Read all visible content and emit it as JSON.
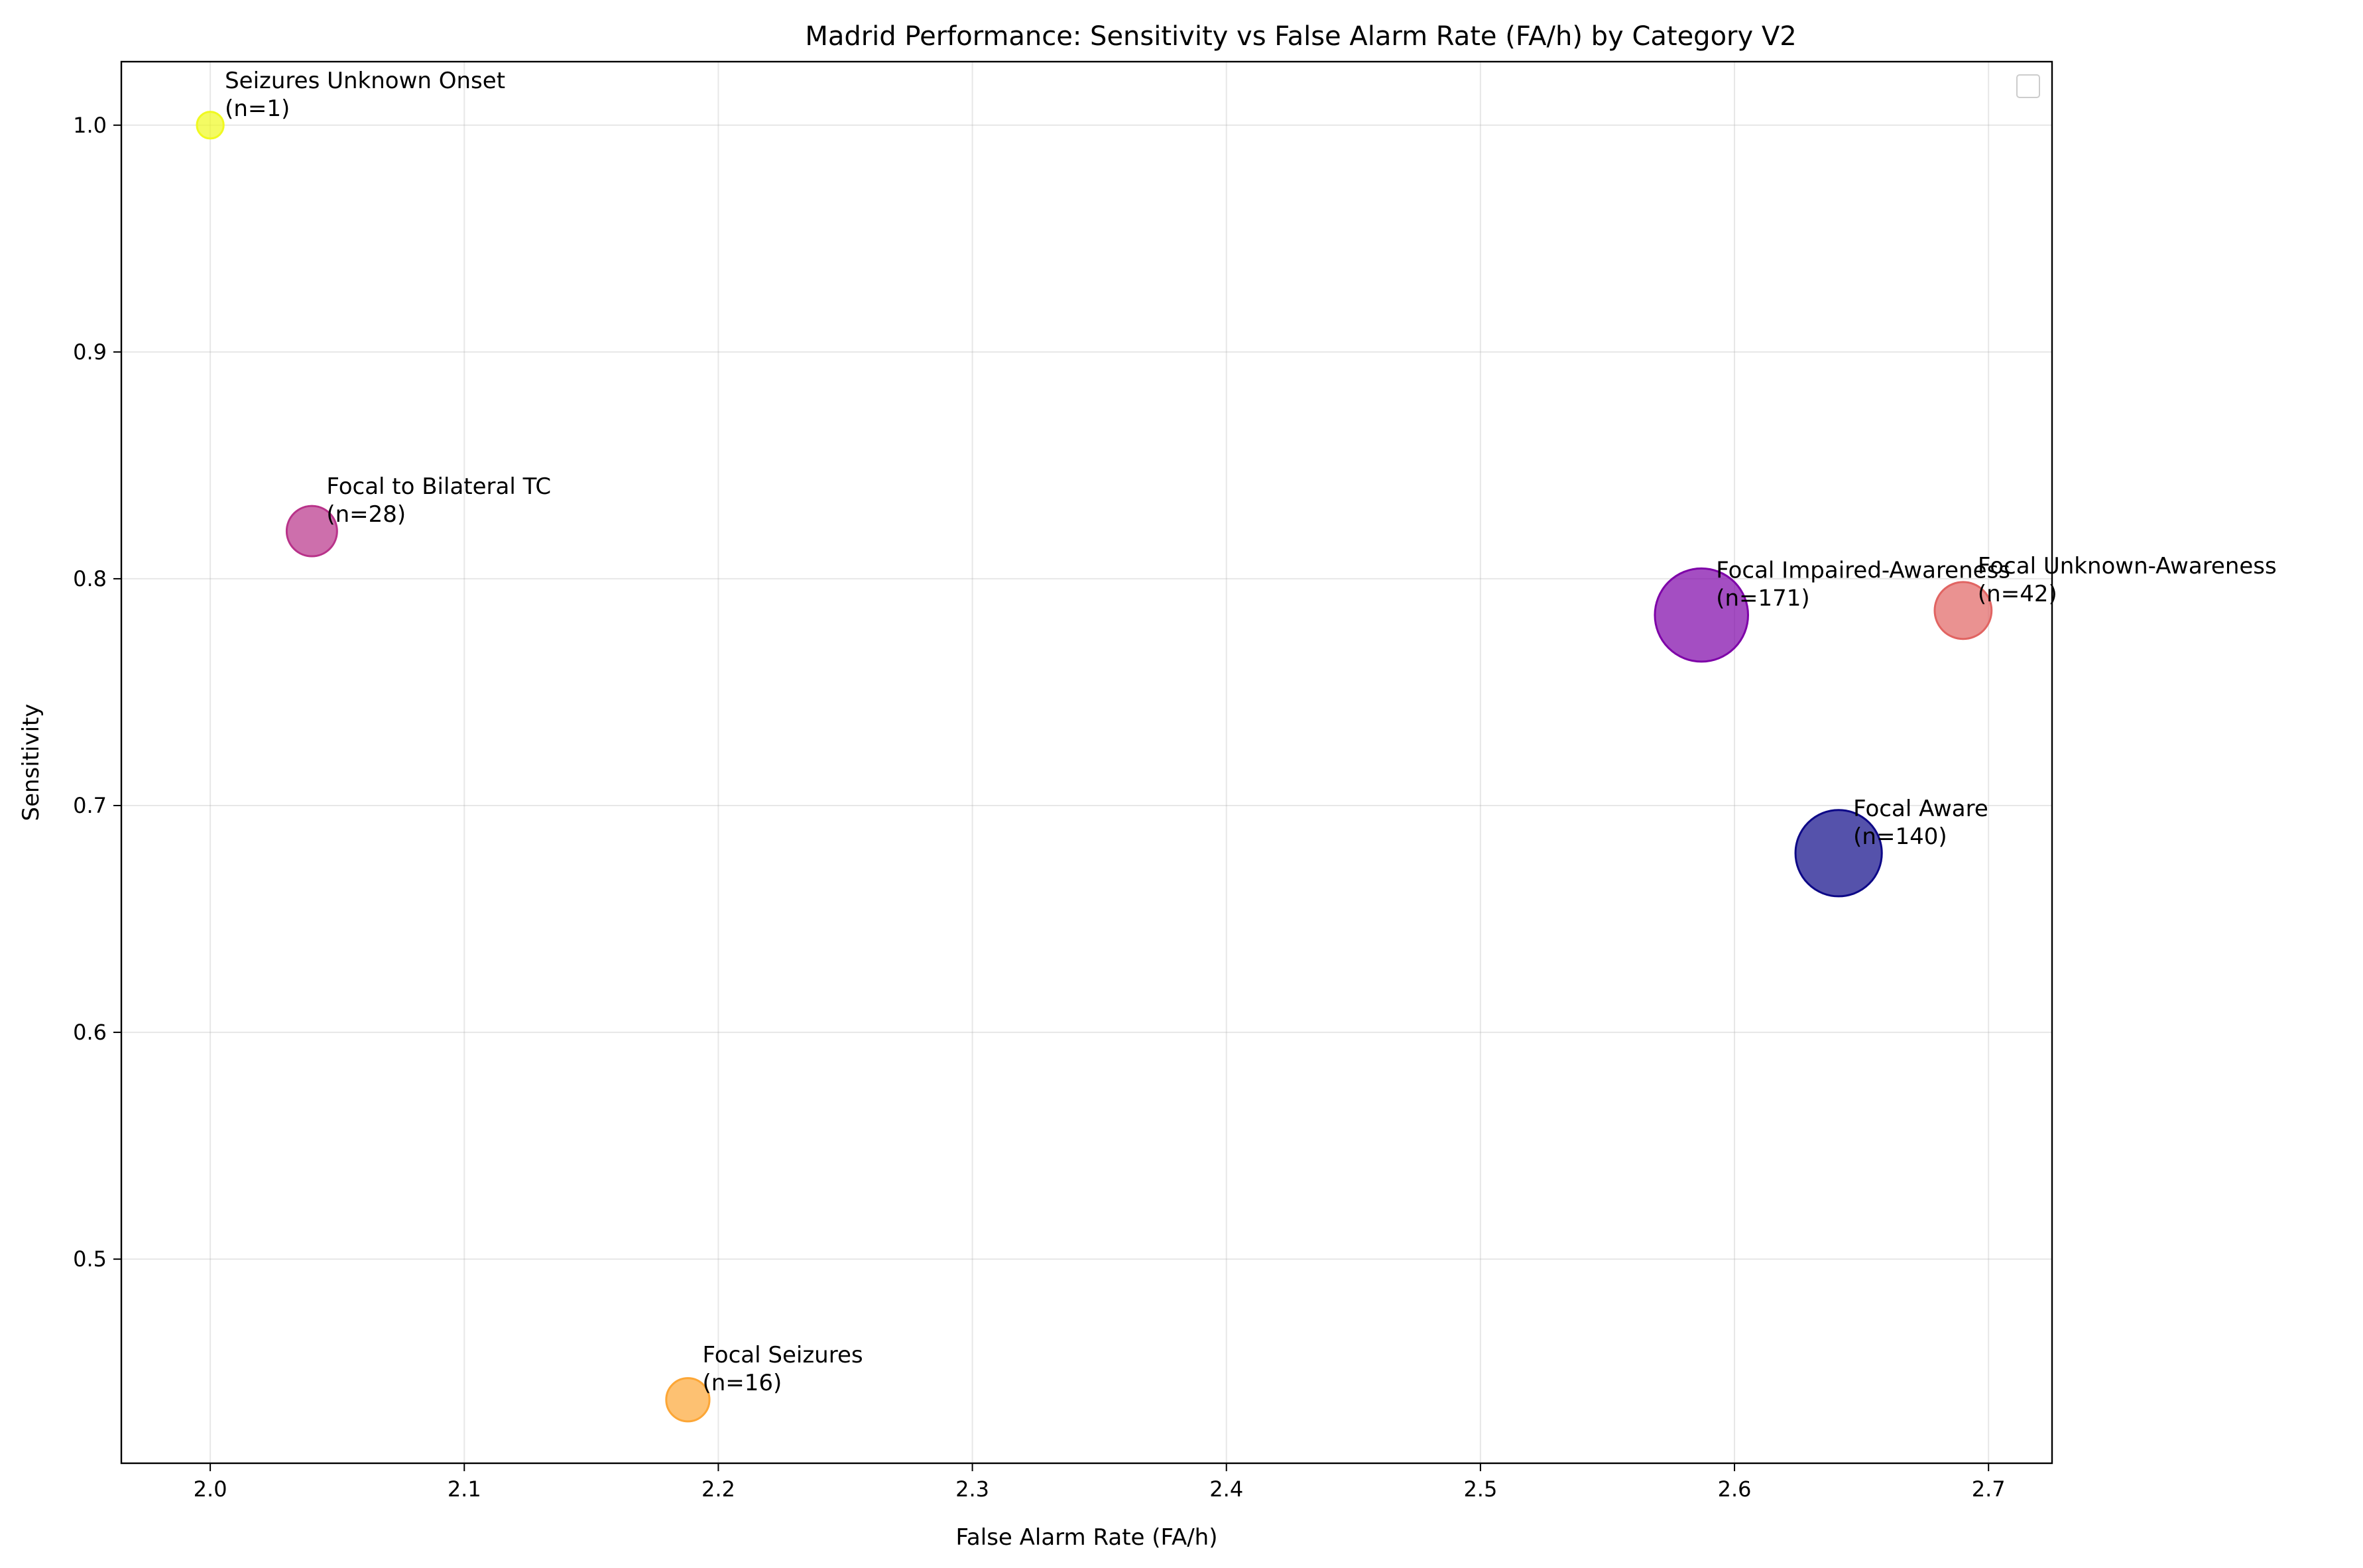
{
  "chart_data": {
    "type": "scatter",
    "title": "Madrid Performance: Sensitivity vs False Alarm Rate (FA/h) by Category V2",
    "xlabel": "False Alarm Rate (FA/h)",
    "ylabel": "Sensitivity",
    "xlim": [
      1.965,
      2.725
    ],
    "ylim": [
      0.41,
      1.028
    ],
    "xticks": [
      "2.0",
      "2.1",
      "2.2",
      "2.3",
      "2.4",
      "2.5",
      "2.6",
      "2.7"
    ],
    "yticks": [
      "0.5",
      "0.6",
      "0.7",
      "0.8",
      "0.9",
      "1.0"
    ],
    "grid": true,
    "legend": "upper-right (empty)",
    "points": [
      {
        "line1": "Seizures Unknown Onset",
        "line2": "(n=1)",
        "n": 1,
        "x": 2.0,
        "y": 1.0,
        "color": "#f0f921"
      },
      {
        "line1": "Focal to Bilateral TC",
        "line2": "(n=28)",
        "n": 28,
        "x": 2.04,
        "y": 0.821,
        "color": "#b83289"
      },
      {
        "line1": "Focal Seizures",
        "line2": "(n=16)",
        "n": 16,
        "x": 2.188,
        "y": 0.438,
        "color": "#fca636"
      },
      {
        "line1": "Focal Impaired-Awareness",
        "line2": "(n=171)",
        "n": 171,
        "x": 2.587,
        "y": 0.784,
        "color": "#7e03a8"
      },
      {
        "line1": "Focal Aware",
        "line2": "(n=140)",
        "n": 140,
        "x": 2.641,
        "y": 0.679,
        "color": "#0d0887"
      },
      {
        "line1": "Focal Unknown-Awareness",
        "line2": "(n=42)",
        "n": 42,
        "x": 2.69,
        "y": 0.786,
        "color": "#e16462"
      }
    ]
  }
}
